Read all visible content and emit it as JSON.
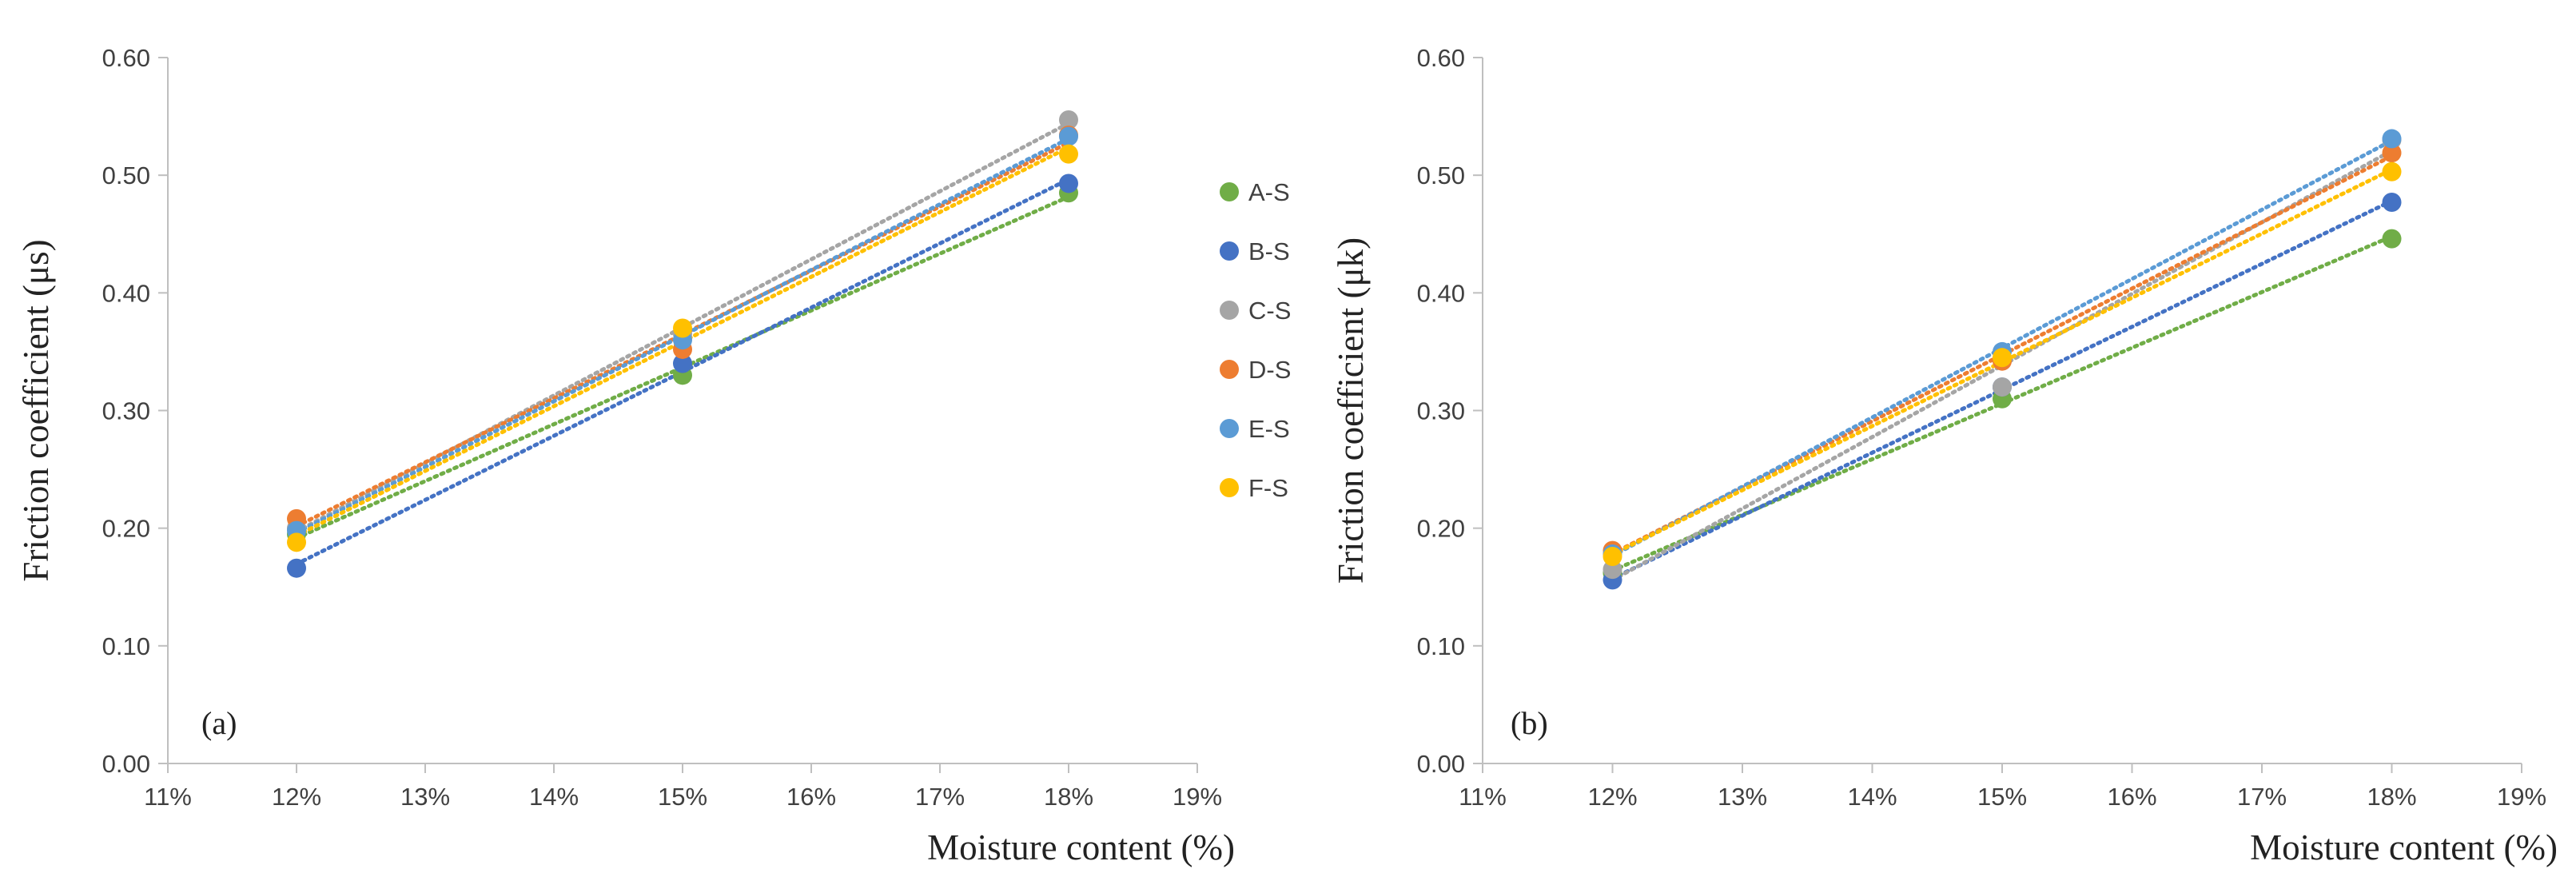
{
  "chart_data": [
    {
      "type": "scatter",
      "panel_label": "(a)",
      "ylabel": "Friction coefficient (μs)",
      "xlabel": "Moisture content (%)",
      "x_ticks": [
        "11%",
        "12%",
        "13%",
        "14%",
        "15%",
        "16%",
        "17%",
        "18%",
        "19%"
      ],
      "y_ticks": [
        "0.00",
        "0.10",
        "0.20",
        "0.30",
        "0.40",
        "0.50",
        "0.60"
      ],
      "xlim": [
        11,
        19
      ],
      "ylim": [
        0,
        0.6
      ],
      "trendlines": true,
      "series": [
        {
          "name": "A-S",
          "color": "#70AD47",
          "x": [
            12,
            15,
            18
          ],
          "y": [
            0.195,
            0.33,
            0.485
          ]
        },
        {
          "name": "B-S",
          "color": "#4472C4",
          "x": [
            12,
            15,
            18
          ],
          "y": [
            0.166,
            0.34,
            0.493
          ]
        },
        {
          "name": "C-S",
          "color": "#A5A5A5",
          "x": [
            12,
            15,
            18
          ],
          "y": [
            0.2,
            0.365,
            0.547
          ]
        },
        {
          "name": "D-S",
          "color": "#ED7D31",
          "x": [
            12,
            15,
            18
          ],
          "y": [
            0.208,
            0.352,
            0.534
          ]
        },
        {
          "name": "E-S",
          "color": "#5B9BD5",
          "x": [
            12,
            15,
            18
          ],
          "y": [
            0.198,
            0.36,
            0.533
          ]
        },
        {
          "name": "F-S",
          "color": "#FFC000",
          "x": [
            12,
            15,
            18
          ],
          "y": [
            0.188,
            0.37,
            0.518
          ]
        }
      ]
    },
    {
      "type": "scatter",
      "panel_label": "(b)",
      "ylabel": "Friction coefficient (μk)",
      "xlabel": "Moisture content (%)",
      "x_ticks": [
        "11%",
        "12%",
        "13%",
        "14%",
        "15%",
        "16%",
        "17%",
        "18%",
        "19%"
      ],
      "y_ticks": [
        "0.00",
        "0.10",
        "0.20",
        "0.30",
        "0.40",
        "0.50",
        "0.60"
      ],
      "xlim": [
        11,
        19
      ],
      "ylim": [
        0,
        0.6
      ],
      "trendlines": true,
      "series": [
        {
          "name": "A-S",
          "color": "#70AD47",
          "x": [
            12,
            15,
            18
          ],
          "y": [
            0.162,
            0.31,
            0.446
          ]
        },
        {
          "name": "B-S",
          "color": "#4472C4",
          "x": [
            12,
            15,
            18
          ],
          "y": [
            0.156,
            0.32,
            0.477
          ]
        },
        {
          "name": "C-S",
          "color": "#A5A5A5",
          "x": [
            12,
            15,
            18
          ],
          "y": [
            0.165,
            0.32,
            0.53
          ]
        },
        {
          "name": "D-S",
          "color": "#ED7D31",
          "x": [
            12,
            15,
            18
          ],
          "y": [
            0.181,
            0.342,
            0.519
          ]
        },
        {
          "name": "E-S",
          "color": "#5B9BD5",
          "x": [
            12,
            15,
            18
          ],
          "y": [
            0.178,
            0.35,
            0.531
          ]
        },
        {
          "name": "F-S",
          "color": "#FFC000",
          "x": [
            12,
            15,
            18
          ],
          "y": [
            0.176,
            0.345,
            0.503
          ]
        }
      ]
    }
  ],
  "legend": {
    "placement": "between panels, right of panel (a)",
    "items": [
      {
        "label": "A-S",
        "color": "#70AD47"
      },
      {
        "label": "B-S",
        "color": "#4472C4"
      },
      {
        "label": "C-S",
        "color": "#A5A5A5"
      },
      {
        "label": "D-S",
        "color": "#ED7D31"
      },
      {
        "label": "E-S",
        "color": "#5B9BD5"
      },
      {
        "label": "F-S",
        "color": "#FFC000"
      }
    ]
  }
}
